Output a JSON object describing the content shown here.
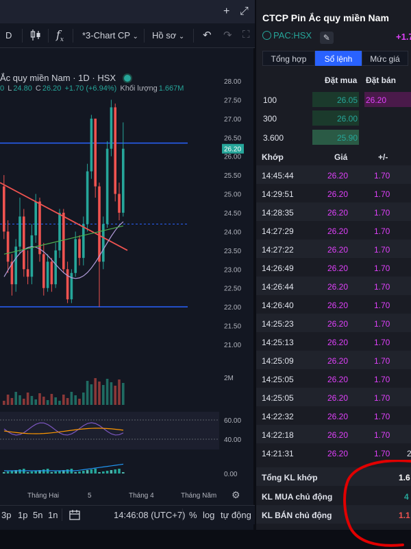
{
  "window": {
    "add_label": "+",
    "expand_label": "⤢"
  },
  "toolbar": {
    "interval": "D",
    "chart_name": "*3-Chart CP",
    "profile": "Hồ sơ",
    "fx_label": "f",
    "fx_sub": "x"
  },
  "legend": {
    "title": "Ắc quy miền Nam · 1D · HSX",
    "ohlc_open_tail": "0",
    "ohlc_low_label": "L",
    "ohlc_low": "24.80",
    "ohlc_close_label": "C",
    "ohlc_close": "26.20",
    "ohlc_change": "+1.70 (+6.94%)",
    "volume_label": "Khối lượng",
    "volume_value": "1.667M"
  },
  "price_axis": {
    "ticks": [
      "28.00",
      "27.50",
      "27.00",
      "26.50",
      "26.00",
      "25.50",
      "25.00",
      "24.50",
      "24.00",
      "23.50",
      "23.00",
      "22.50",
      "22.00",
      "21.50",
      "21.00"
    ],
    "current_price": "26.20",
    "volume_tick": "2M",
    "rsi_ticks": [
      "60.00",
      "40.00"
    ],
    "macd_tick": "0.00"
  },
  "time_axis": {
    "labels": [
      "Tháng Hai",
      "5",
      "Tháng 4",
      "Tháng Năm"
    ]
  },
  "bottom_bar": {
    "ranges": [
      "3p",
      "1p",
      "5n",
      "1n"
    ],
    "clock": "14:46:08 (UTC+7)",
    "percent": "%",
    "log": "log",
    "auto": "tự động"
  },
  "stock": {
    "name": "CTCP Pin Ắc quy miền Nam",
    "ticker": "PAC:HSX",
    "change": "+1.7"
  },
  "tabs": [
    {
      "label": "Tổng hợp",
      "active": false
    },
    {
      "label": "Sổ lệnh",
      "active": true
    },
    {
      "label": "Mức giá",
      "active": false
    }
  ],
  "order_book": {
    "headers": {
      "bid": "Đặt mua",
      "ask": "Đặt bán"
    },
    "rows": [
      {
        "volume": "100",
        "bid": "26.05",
        "ask": "26.20"
      },
      {
        "volume": "300",
        "bid": "26.00",
        "ask": ""
      },
      {
        "volume": "3.600",
        "bid": "25.90",
        "ask": ""
      }
    ]
  },
  "trades": {
    "headers": {
      "time": "Khớp",
      "price": "Giá",
      "change": "+/-"
    },
    "rows": [
      {
        "time": "14:45:44",
        "price": "26.20",
        "change": "1.70",
        "extra": ""
      },
      {
        "time": "14:29:51",
        "price": "26.20",
        "change": "1.70",
        "extra": ""
      },
      {
        "time": "14:28:35",
        "price": "26.20",
        "change": "1.70",
        "extra": ""
      },
      {
        "time": "14:27:29",
        "price": "26.20",
        "change": "1.70",
        "extra": ""
      },
      {
        "time": "14:27:22",
        "price": "26.20",
        "change": "1.70",
        "extra": ""
      },
      {
        "time": "14:26:49",
        "price": "26.20",
        "change": "1.70",
        "extra": ""
      },
      {
        "time": "14:26:44",
        "price": "26.20",
        "change": "1.70",
        "extra": ""
      },
      {
        "time": "14:26:40",
        "price": "26.20",
        "change": "1.70",
        "extra": ""
      },
      {
        "time": "14:25:23",
        "price": "26.20",
        "change": "1.70",
        "extra": ""
      },
      {
        "time": "14:25:13",
        "price": "26.20",
        "change": "1.70",
        "extra": ""
      },
      {
        "time": "14:25:09",
        "price": "26.20",
        "change": "1.70",
        "extra": ""
      },
      {
        "time": "14:25:05",
        "price": "26.20",
        "change": "1.70",
        "extra": ""
      },
      {
        "time": "14:25:05",
        "price": "26.20",
        "change": "1.70",
        "extra": ""
      },
      {
        "time": "14:22:32",
        "price": "26.20",
        "change": "1.70",
        "extra": ""
      },
      {
        "time": "14:22:18",
        "price": "26.20",
        "change": "1.70",
        "extra": ""
      },
      {
        "time": "14:21:31",
        "price": "26.20",
        "change": "1.70",
        "extra": "2"
      }
    ]
  },
  "summary": [
    {
      "label": "Tổng KL khớp",
      "value": "1.6",
      "color": "#ffffff"
    },
    {
      "label": "KL MUA chủ động",
      "value": "4",
      "color": "#26a69a"
    },
    {
      "label": "KL BÁN chủ động",
      "value": "1.1",
      "color": "#ef5350"
    }
  ],
  "colors": {
    "up": "#26a69a",
    "down": "#ef5350",
    "magenta": "#e040fb",
    "accent": "#2962ff",
    "annotation": "#e00000"
  }
}
